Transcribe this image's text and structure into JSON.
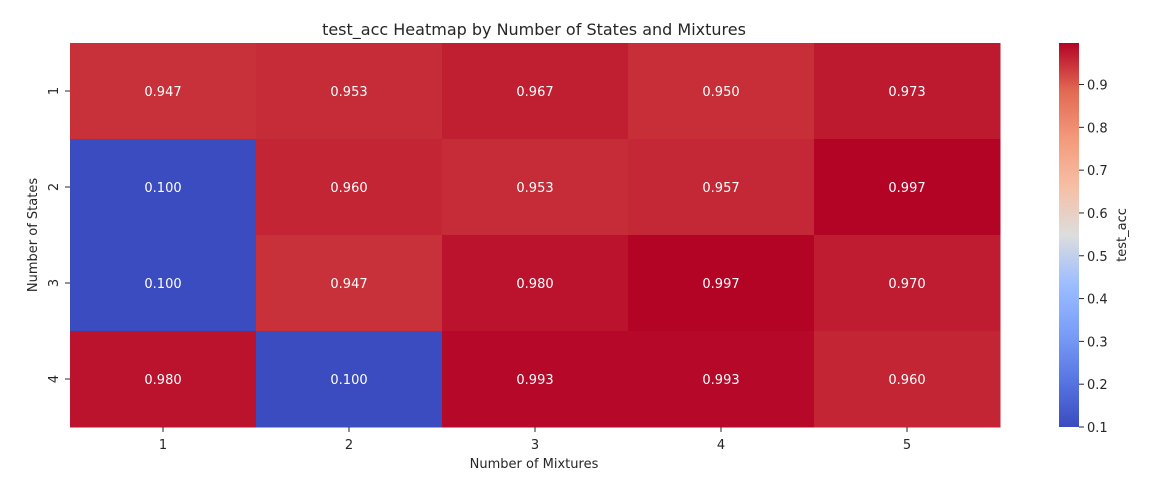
{
  "chart_data": {
    "type": "heatmap",
    "title": "test_acc Heatmap by Number of States and Mixtures",
    "xlabel": "Number of Mixtures",
    "ylabel": "Number of States",
    "x_categories": [
      "1",
      "2",
      "3",
      "4",
      "5"
    ],
    "y_categories": [
      "1",
      "2",
      "3",
      "4"
    ],
    "values": [
      [
        0.947,
        0.953,
        0.967,
        0.95,
        0.973
      ],
      [
        0.1,
        0.96,
        0.953,
        0.957,
        0.997
      ],
      [
        0.1,
        0.947,
        0.98,
        0.997,
        0.97
      ],
      [
        0.98,
        0.1,
        0.993,
        0.993,
        0.96
      ]
    ],
    "cell_labels": [
      [
        "0.947",
        "0.953",
        "0.967",
        "0.950",
        "0.973"
      ],
      [
        "0.100",
        "0.960",
        "0.953",
        "0.957",
        "0.997"
      ],
      [
        "0.100",
        "0.947",
        "0.980",
        "0.997",
        "0.970"
      ],
      [
        "0.980",
        "0.100",
        "0.993",
        "0.993",
        "0.960"
      ]
    ],
    "colorbar": {
      "label": "test_acc",
      "range": [
        0.1,
        0.997
      ],
      "ticks": [
        "0.1",
        "0.2",
        "0.3",
        "0.4",
        "0.5",
        "0.6",
        "0.7",
        "0.8",
        "0.9"
      ],
      "colormap": "coolwarm",
      "low_color": "#3b4cc0",
      "mid_color": "#dddddd",
      "high_color": "#b40426"
    }
  }
}
